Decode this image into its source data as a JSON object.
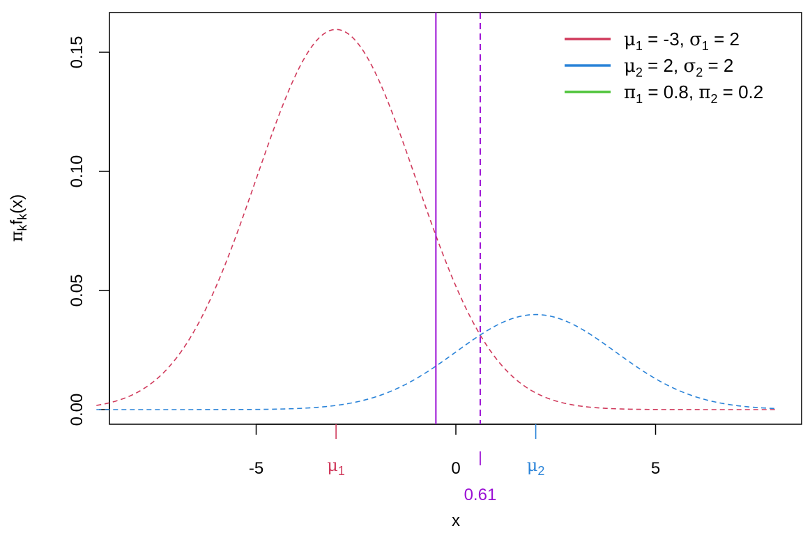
{
  "chart_data": {
    "type": "line",
    "xlabel": "x",
    "ylabel": {
      "pi": "π",
      "k1": "k",
      "f": "f",
      "k2": "k",
      "rest": "(x)"
    },
    "xlim": [
      -10,
      10
    ],
    "ylim": [
      0,
      0.16
    ],
    "x_ticks": [
      -5,
      0,
      5
    ],
    "x_tick_labels": [
      "-5",
      "0",
      "5"
    ],
    "y_ticks": [
      0.0,
      0.05,
      0.1,
      0.15
    ],
    "y_tick_labels": [
      "0.00",
      "0.05",
      "0.10",
      "0.15"
    ],
    "x_range": [
      -9,
      8
    ],
    "grid": false,
    "legend_position": "top-right",
    "series": [
      {
        "mean": -3,
        "sd": 2,
        "prior": 0.8,
        "color": "#d03a5c",
        "dash": true
      },
      {
        "mean": 2,
        "sd": 2,
        "prior": 0.2,
        "color": "#2a83d8",
        "dash": true
      }
    ],
    "mean_markers": [
      {
        "x": -3,
        "symbol": "μ",
        "subscript": "1",
        "color": "#d03a5c"
      },
      {
        "x": 2,
        "symbol": "μ",
        "subscript": "2",
        "color": "#2a83d8"
      }
    ],
    "vertical_lines": [
      {
        "x": -0.5,
        "color": "#9b10d4",
        "style": "solid"
      },
      {
        "x": 0.61,
        "color": "#9b10d4",
        "style": "dashed"
      }
    ],
    "decision_boundary": {
      "x": 0.61,
      "label": "0.61",
      "color": "#9b10d4"
    },
    "legend": [
      {
        "color": "#d03a5c",
        "parts": [
          "μ",
          "1",
          " = -3, ",
          "σ",
          "1",
          " = 2"
        ]
      },
      {
        "color": "#2a83d8",
        "parts": [
          "μ",
          "2",
          " = 2, ",
          "σ",
          "2",
          " = 2"
        ]
      },
      {
        "color": "#4fc43a",
        "parts": [
          "π",
          "1",
          " = 0.8, ",
          "π",
          "2",
          " = 0.2"
        ]
      }
    ]
  }
}
